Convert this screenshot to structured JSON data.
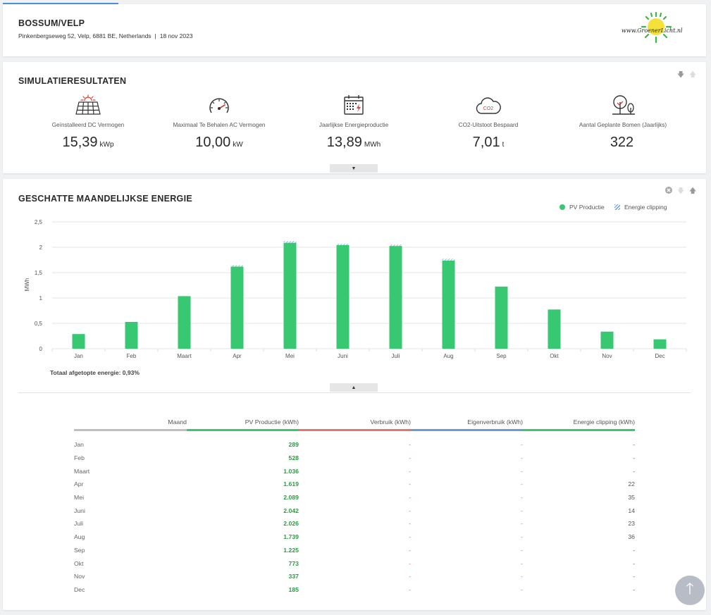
{
  "header": {
    "title": "BOSSUM/VELP",
    "address": "Pinkenbergseweg 52, Velp, 6881 BE, Netherlands",
    "separator": "|",
    "date": "18 nov 2023",
    "logo_text": "www.GroenerLicht.nl"
  },
  "simulation": {
    "title": "SIMULATIERESULTATEN",
    "kpis": [
      {
        "icon": "solar-panel-icon",
        "label": "Geïnstalleerd DC Vermogen",
        "value": "15,39",
        "unit": "kWp"
      },
      {
        "icon": "gauge-icon",
        "label": "Maximaal Te Behalen AC Vermogen",
        "value": "10,00",
        "unit": "kW"
      },
      {
        "icon": "calendar-energy-icon",
        "label": "Jaarlijkse Energieproductie",
        "value": "13,89",
        "unit": "MWh"
      },
      {
        "icon": "co2-cloud-icon",
        "label": "CO2-Uitstoot Bespaard",
        "value": "7,01",
        "unit": "t"
      },
      {
        "icon": "trees-icon",
        "label": "Aantal Geplante Bomen (Jaarlijks)",
        "value": "322",
        "unit": ""
      }
    ]
  },
  "energy": {
    "title": "GESCHATTE MAANDELIJKSE ENERGIE",
    "legend": [
      {
        "label": "PV Productie",
        "color": "#37c871"
      },
      {
        "label": "Energie clipping",
        "color": "#6a9bd8"
      }
    ],
    "totaal": "Totaal afgetopte energie: 0,93%",
    "table": {
      "headers": [
        "Maand",
        "PV Productie (kWh)",
        "Verbruik (kWh)",
        "Eigenverbruik (kWh)",
        "Energie clipping (kWh)"
      ],
      "header_colors": [
        "#c0c0c0",
        "#37c871",
        "#e57373",
        "#6a9bd8",
        "#37c871"
      ],
      "rows": [
        [
          "Jan",
          "289",
          "-",
          "-",
          "-"
        ],
        [
          "Feb",
          "528",
          "-",
          "-",
          "-"
        ],
        [
          "Maart",
          "1.036",
          "-",
          "-",
          "-"
        ],
        [
          "Apr",
          "1.619",
          "-",
          "-",
          "22"
        ],
        [
          "Mei",
          "2.089",
          "-",
          "-",
          "35"
        ],
        [
          "Juni",
          "2.042",
          "-",
          "-",
          "14"
        ],
        [
          "Juli",
          "2.026",
          "-",
          "-",
          "23"
        ],
        [
          "Aug",
          "1.739",
          "-",
          "-",
          "36"
        ],
        [
          "Sep",
          "1.225",
          "-",
          "-",
          "-"
        ],
        [
          "Okt",
          "773",
          "-",
          "-",
          "-"
        ],
        [
          "Nov",
          "337",
          "-",
          "-",
          "-"
        ],
        [
          "Dec",
          "185",
          "-",
          "-",
          "-"
        ]
      ]
    }
  },
  "chart_data": {
    "type": "bar",
    "categories": [
      "Jan",
      "Feb",
      "Maart",
      "Apr",
      "Mei",
      "Juni",
      "Juli",
      "Aug",
      "Sep",
      "Okt",
      "Nov",
      "Dec"
    ],
    "series": [
      {
        "name": "PV Productie",
        "values": [
          0.289,
          0.528,
          1.036,
          1.619,
          2.089,
          2.042,
          2.026,
          1.739,
          1.225,
          0.773,
          0.337,
          0.185
        ],
        "color": "#37c871"
      },
      {
        "name": "Energie clipping",
        "values": [
          0,
          0,
          0,
          0.022,
          0.035,
          0.014,
          0.023,
          0.036,
          0,
          0,
          0,
          0
        ],
        "color": "#6a9bd8"
      }
    ],
    "ylabel": "MWh",
    "yticks": [
      "0",
      "0,5",
      "1",
      "1,5",
      "2",
      "2,5"
    ],
    "ylim": [
      0,
      2.5
    ],
    "stacked": true,
    "grid": true,
    "legend": "top-right"
  }
}
